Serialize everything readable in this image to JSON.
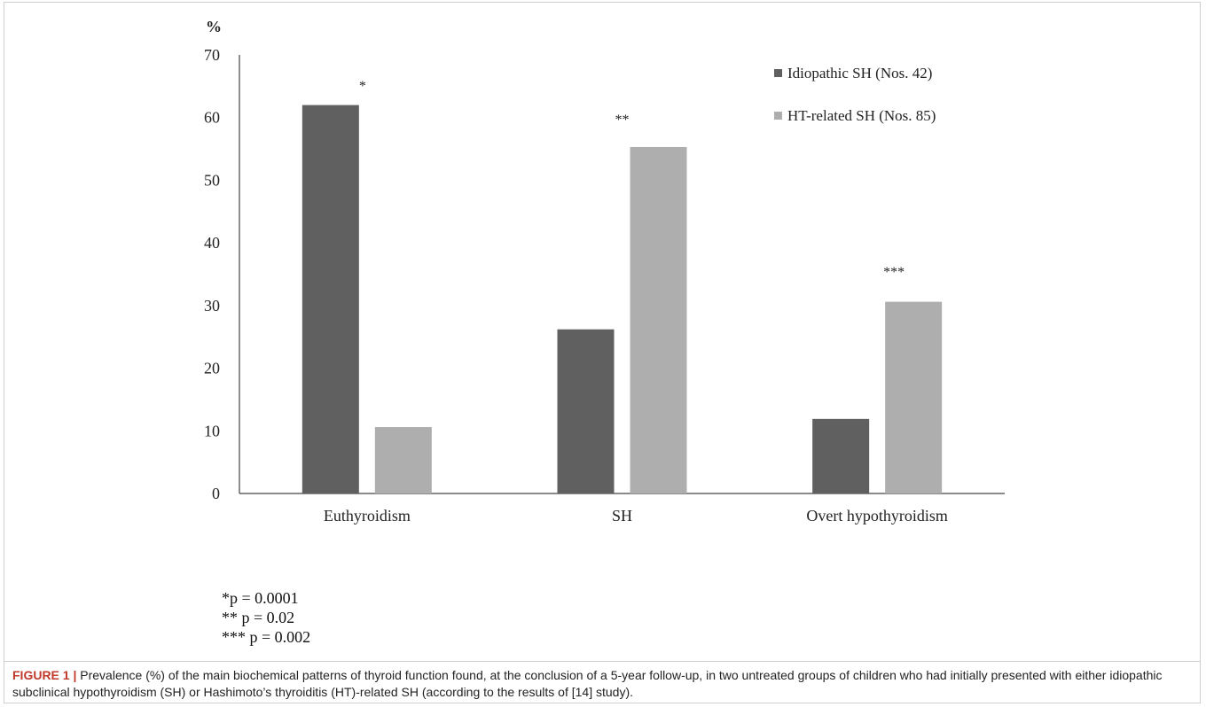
{
  "chart_data": {
    "type": "bar",
    "ylabel": "%",
    "ylim": [
      0,
      70
    ],
    "yticks": [
      "0",
      "10",
      "20",
      "30",
      "40",
      "50",
      "60",
      "70"
    ],
    "categories": [
      "Euthyroidism",
      "SH",
      "Overt hypothyroidism"
    ],
    "series": [
      {
        "name": "Idiopathic SH (Nos. 42)",
        "values": [
          62,
          26.2,
          11.9
        ],
        "color": "#606060"
      },
      {
        "name": "HT-related SH (Nos. 85)",
        "values": [
          10.6,
          55.3,
          30.6
        ],
        "color": "#aeaeae"
      }
    ],
    "annotations": [
      "*",
      "**",
      "***"
    ],
    "legend_position": "top-right",
    "grid": false
  },
  "footnotes": [
    "*p = 0.0001",
    "** p = 0.02",
    "*** p = 0.002"
  ],
  "caption": {
    "lead": "FIGURE 1 |",
    "text": " Prevalence (%) of the main biochemical patterns of thyroid function found, at the conclusion of a 5-year follow-up, in two untreated groups of children who had initially presented with either idiopathic subclinical hypothyroidism (SH) or Hashimoto’s thyroiditis (HT)-related SH (according to the results of [14] study)."
  }
}
